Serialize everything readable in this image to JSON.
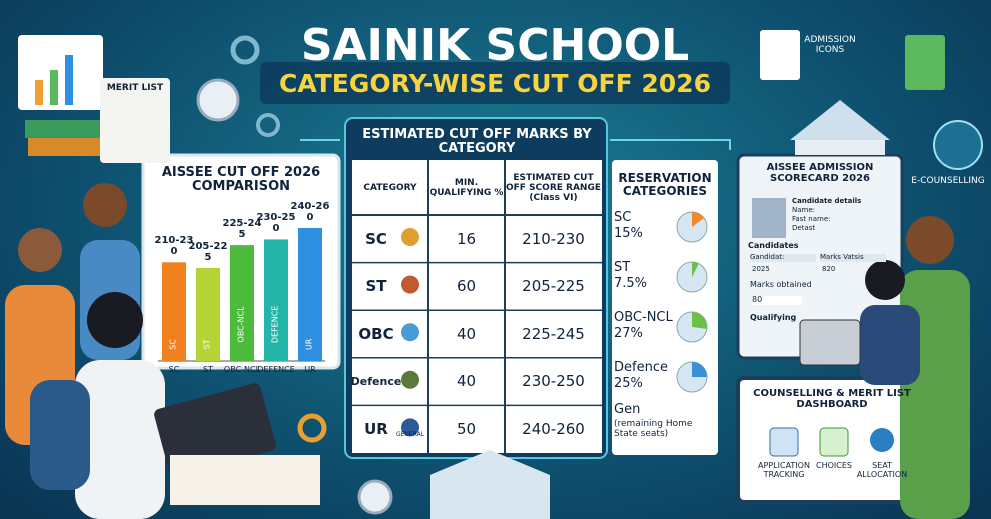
{
  "header": {
    "title": "SAINIK SCHOOL",
    "subtitle": "CATEGORY-WISE CUT OFF 2026"
  },
  "merit_list": "MERIT LIST",
  "comparison": {
    "title": "AISSEE CUT OFF 2026 COMPARISON",
    "bars": [
      {
        "range": "210-230",
        "inner": "SC",
        "label": "SC",
        "color": "#f07f1e"
      },
      {
        "range": "205-225",
        "inner": "ST",
        "label": "ST",
        "color": "#b5d334"
      },
      {
        "range": "225-245",
        "inner": "OBC-NCL",
        "label": "OBC-NCL",
        "color": "#4cbb3c"
      },
      {
        "range": "230-250",
        "inner": "DEFENCE",
        "label": "DEFENCE",
        "color": "#22b5a8"
      },
      {
        "range": "240-260",
        "inner": "UR",
        "label": "UR",
        "color": "#2f8fe0"
      }
    ]
  },
  "table": {
    "title": "ESTIMATED CUT OFF MARKS BY CATEGORY",
    "headers": [
      "CATEGORY",
      "MIN. QUALIFYING %",
      "ESTIMATED CUT OFF SCORE RANGE (Class VI)"
    ],
    "rows": [
      [
        "SC",
        16,
        "210-230"
      ],
      [
        "ST",
        60,
        "205-225"
      ],
      [
        "OBC",
        40,
        "225-245"
      ],
      [
        "Defence",
        40,
        "230-250"
      ],
      [
        "UR",
        50,
        "240-260"
      ]
    ],
    "general_icon_label": "GENERAL"
  },
  "reservation": {
    "title": "RESERVATION CATEGORIES",
    "items": [
      {
        "name": "SC",
        "value": 15,
        "label": "15%",
        "color": "#f08a2a"
      },
      {
        "name": "ST",
        "value": 7.5,
        "label": "7.5%",
        "color": "#6cc04a"
      },
      {
        "name": "OBC-NCL",
        "value": 27,
        "label": "27%",
        "color": "#6cc04a"
      },
      {
        "name": "Defence",
        "value": 25,
        "label": "25%",
        "color": "#3a8fd8"
      }
    ],
    "general": {
      "name": "Gen",
      "note": "(remaining Home State seats)"
    }
  },
  "admission_icons": "ADMISSION ICONS",
  "e_counselling": "E-COUNSELLING",
  "scorecard": {
    "title": "AISSEE ADMISSION SCORECARD 2026",
    "details": [
      "Candidate details",
      "Name:",
      "Fast name:",
      "Detast"
    ],
    "candidates": "Candidates",
    "columns": [
      "Gandidat:",
      "Marks Vatsis"
    ],
    "row": [
      "2025",
      "820"
    ],
    "marks_obtained": "Marks obtained",
    "marks": "80",
    "qualifying": "Qualifying"
  },
  "dashboard": {
    "title": "COUNSELLING & MERIT LIST DASHBOARD",
    "items": [
      "APPLICATION TRACKING",
      "CHOICES",
      "SEAT ALLOCATION"
    ]
  }
}
